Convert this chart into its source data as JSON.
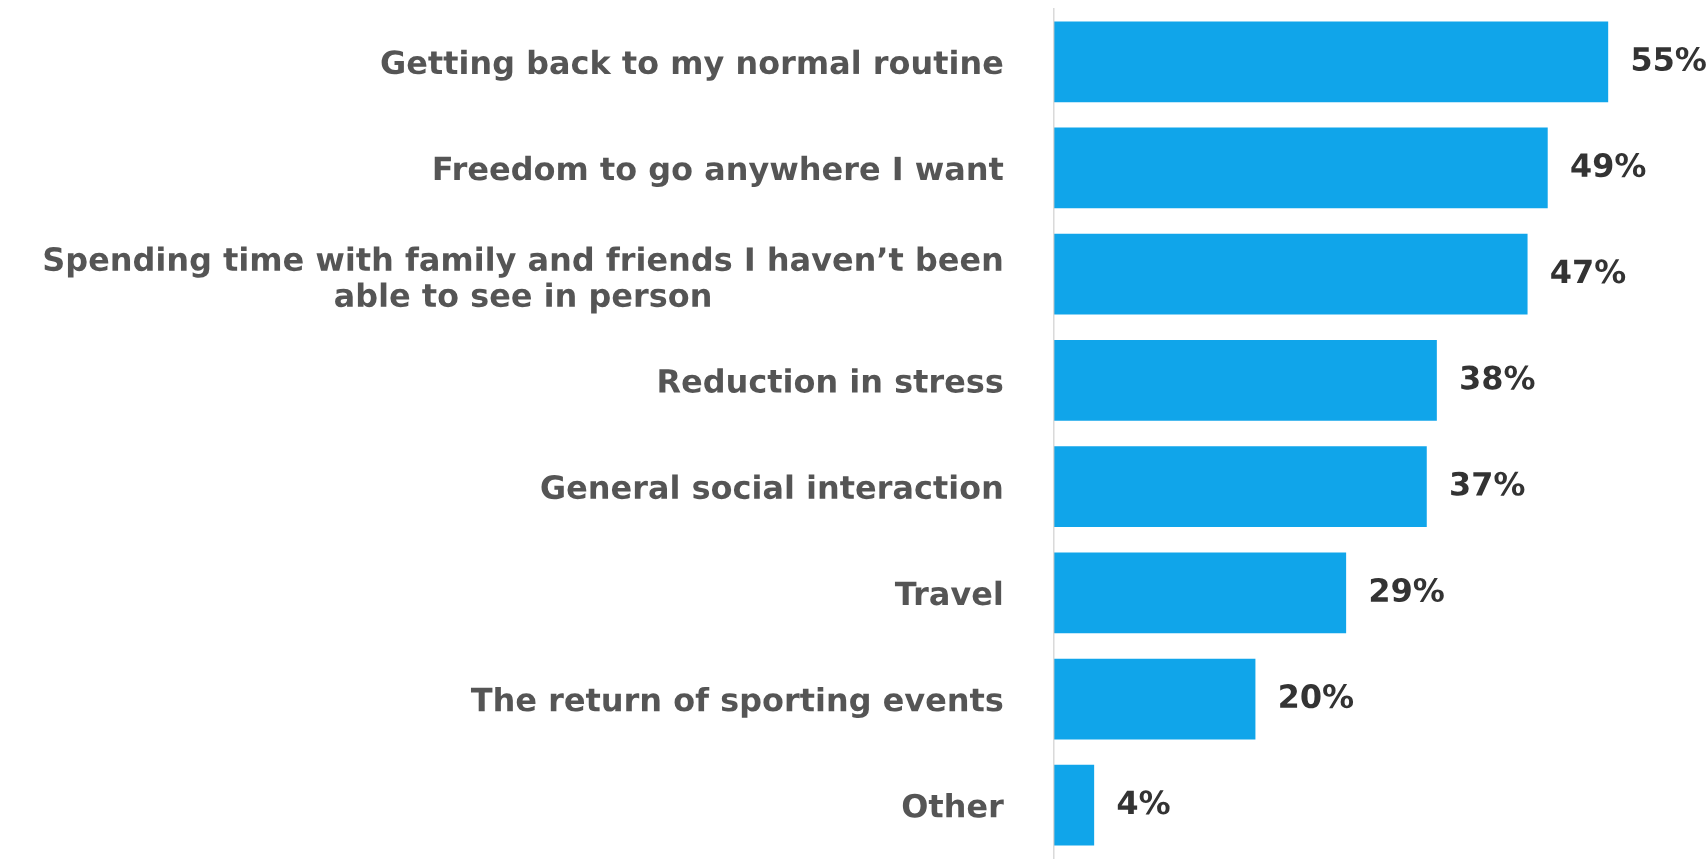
{
  "chart_data": {
    "type": "bar",
    "orientation": "horizontal",
    "categories": [
      "Getting back to my normal routine",
      "Freedom to go anywhere I want",
      "Spending time with family and friends I haven’t been able to see in person",
      "Reduction in stress",
      "General social interaction",
      "Travel",
      "The return of sporting events",
      "Other"
    ],
    "values": [
      55,
      49,
      47,
      38,
      37,
      29,
      20,
      4
    ],
    "value_labels": [
      "55%",
      "49%",
      "47%",
      "38%",
      "37%",
      "29%",
      "20%",
      "4%"
    ],
    "color": "#10a5ea",
    "grid": false,
    "legend": false
  }
}
